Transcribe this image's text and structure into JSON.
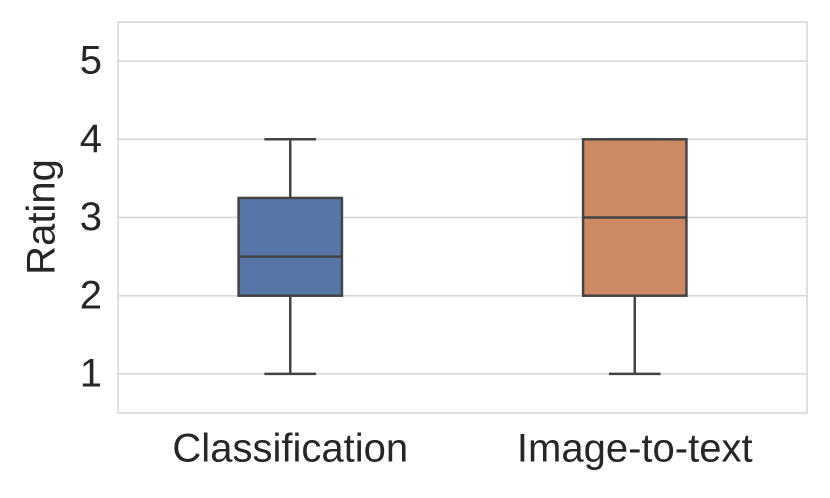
{
  "chart_data": {
    "type": "box",
    "y_label": "Rating",
    "categories": [
      "Classification",
      "Image-to-text"
    ],
    "stats": [
      {
        "min": 1,
        "q1": 2,
        "median": 2.5,
        "q3": 3.25,
        "max": 4,
        "color": "#5875a8"
      },
      {
        "min": 1,
        "q1": 2,
        "median": 3,
        "q3": 4,
        "max": 4,
        "color": "#cc8963"
      }
    ],
    "ylim": [
      0.5,
      5.5
    ],
    "yticks": [
      1,
      2,
      3,
      4,
      5
    ],
    "grid": true
  }
}
